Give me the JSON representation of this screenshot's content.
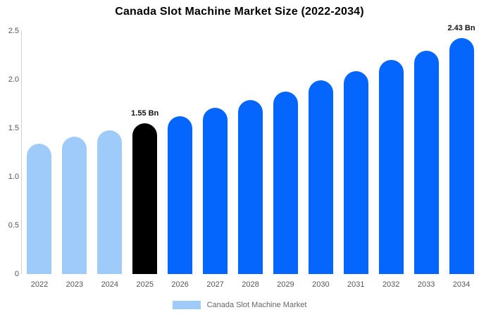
{
  "chart_data": {
    "type": "bar",
    "title": "Canada Slot Machine Market Size (2022-2034)",
    "unit": "Bn",
    "categories": [
      "2022",
      "2023",
      "2024",
      "2025",
      "2026",
      "2027",
      "2028",
      "2029",
      "2030",
      "2031",
      "2032",
      "2033",
      "2034"
    ],
    "values": [
      1.34,
      1.41,
      1.48,
      1.55,
      1.62,
      1.71,
      1.79,
      1.88,
      1.99,
      2.09,
      2.2,
      2.3,
      2.43
    ],
    "color_keys": [
      "past",
      "past",
      "past",
      "highlight",
      "forecast",
      "forecast",
      "forecast",
      "forecast",
      "forecast",
      "forecast",
      "forecast",
      "forecast",
      "forecast"
    ],
    "colors": {
      "past": "#9ECBFA",
      "highlight": "#000000",
      "forecast": "#0566FE"
    },
    "annotations": [
      {
        "index": 3,
        "text": "1.55 Bn"
      },
      {
        "index": 12,
        "text": "2.43 Bn"
      }
    ],
    "ylim": [
      0,
      2.5
    ],
    "yticks": [
      "0",
      "0.5",
      "1.0",
      "1.5",
      "2.0",
      "2.5"
    ],
    "grid": false,
    "legend_position": "bottom",
    "legend": [
      {
        "label": "Canada Slot Machine Market",
        "color": "#9ECBFA"
      }
    ],
    "text_colors": {
      "title": "#000000",
      "axis_labels": "#555555",
      "legend_text": "#666666",
      "annotation": "#111111"
    },
    "axis_line_color": "#ccd1d6"
  }
}
